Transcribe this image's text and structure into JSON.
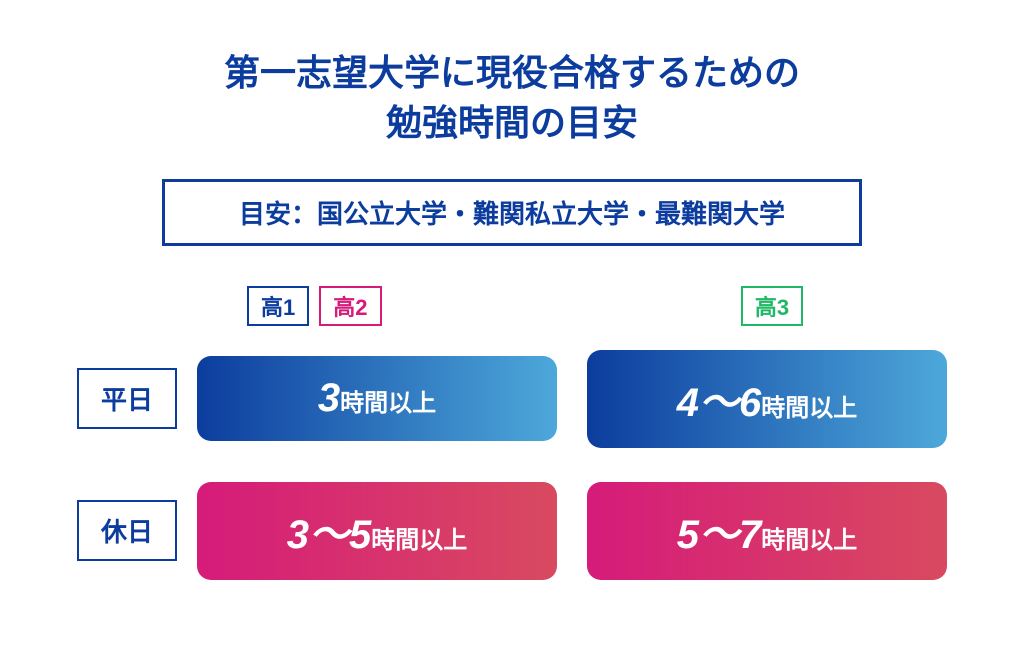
{
  "title_line1": "第一志望大学に現役合格するための",
  "title_line2": "勉強時間の目安",
  "subtitle": "目安：国公立大学・難関私立大学・最難関大学",
  "grades": {
    "g1": {
      "label": "高1",
      "color": "#0c3d9e"
    },
    "g2": {
      "label": "高2",
      "color": "#d61b7a"
    },
    "g3": {
      "label": "高3",
      "color": "#1fb866"
    }
  },
  "rows": {
    "weekday": {
      "label": "平日",
      "col1_big": "3",
      "col1_small": "時間以上",
      "col2_big": "4～6",
      "col2_small": "時間以上",
      "gradient": "grad-blue"
    },
    "holiday": {
      "label": "休日",
      "col1_big": "3～5",
      "col1_small": "時間以上",
      "col2_big": "5～7",
      "col2_small": "時間以上",
      "gradient": "grad-pink"
    }
  },
  "colors": {
    "primary": "#0c3d9e",
    "blue_start": "#0c3d9e",
    "blue_end": "#4da8da",
    "pink_start": "#d61b7a",
    "pink_end": "#d84a5f",
    "green": "#1fb866",
    "white": "#ffffff"
  }
}
